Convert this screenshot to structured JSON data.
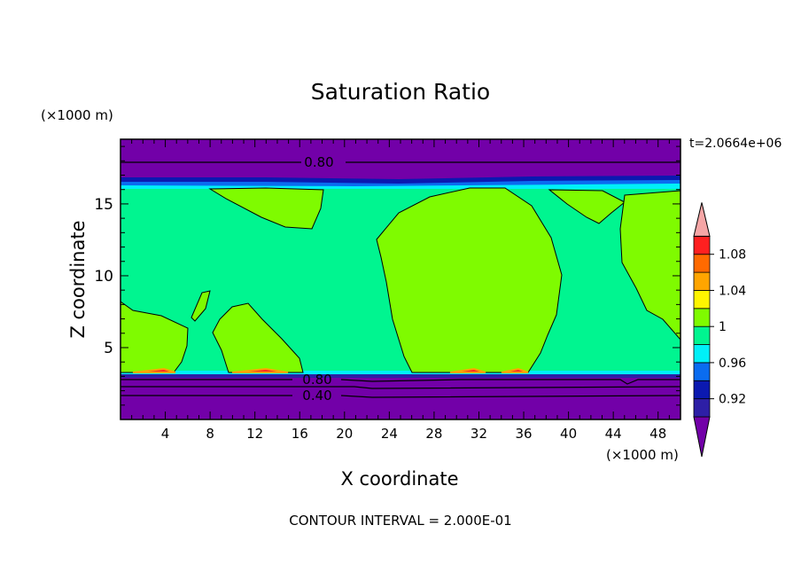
{
  "chart_data": {
    "type": "contour",
    "title": "Saturation Ratio",
    "xlabel": "X coordinate",
    "ylabel": "Z coordinate",
    "x_units": "(×1000 m)",
    "y_units": "(×1000 m)",
    "time_label": "t=2.0664e+06",
    "footer": "CONTOUR INTERVAL = 2.000E-01",
    "xlim": [
      0,
      50
    ],
    "ylim": [
      0,
      19.5
    ],
    "x_ticks": [
      "4",
      "8",
      "12",
      "16",
      "20",
      "24",
      "28",
      "32",
      "36",
      "40",
      "44",
      "48"
    ],
    "y_ticks": [
      "5",
      "10",
      "15"
    ],
    "contour_labels": [
      {
        "text": "0.80",
        "x": 17.5,
        "z": 18.2
      },
      {
        "text": "0.80",
        "x": 17.5,
        "z": 3.0
      },
      {
        "text": "0.40",
        "x": 17.5,
        "z": 1.7
      }
    ],
    "colorbar": {
      "levels": [
        0.92,
        0.96,
        1.0,
        1.04,
        1.08
      ],
      "tick_labels": [
        "0.92",
        "0.96",
        "1",
        "1.04",
        "1.08"
      ],
      "colors": [
        "#7200a8",
        "#2d1fa6",
        "#0b19b0",
        "#0a6cf0",
        "#00f0f8",
        "#00f590",
        "#7ffb00",
        "#fff500",
        "#ffa500",
        "#ff6a00",
        "#ff2020",
        "#f6a6a6"
      ]
    },
    "fill_colors": {
      "below": "#7200a8",
      "low": "#2d1fa6",
      "mid_low": "#0a6cf0",
      "near_one": "#00f590",
      "above_one": "#7ffb00",
      "peak": "#ff2020",
      "peak_edge": "#ffa500"
    }
  }
}
